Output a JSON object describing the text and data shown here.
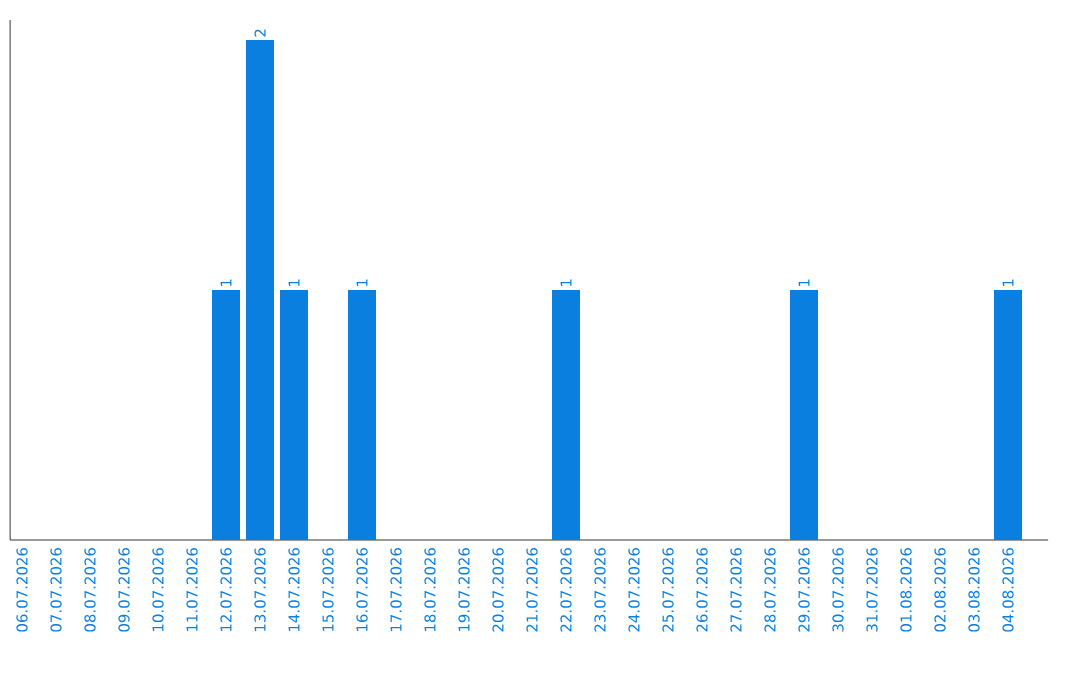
{
  "chart_data": {
    "type": "bar",
    "categories": [
      "06.07.2026",
      "07.07.2026",
      "08.07.2026",
      "09.07.2026",
      "10.07.2026",
      "11.07.2026",
      "12.07.2026",
      "13.07.2026",
      "14.07.2026",
      "15.07.2026",
      "16.07.2026",
      "17.07.2026",
      "18.07.2026",
      "19.07.2026",
      "20.07.2026",
      "21.07.2026",
      "22.07.2026",
      "23.07.2026",
      "24.07.2026",
      "25.07.2026",
      "26.07.2026",
      "27.07.2026",
      "28.07.2026",
      "29.07.2026",
      "30.07.2026",
      "31.07.2026",
      "01.08.2026",
      "02.08.2026",
      "03.08.2026",
      "04.08.2026"
    ],
    "values": [
      0,
      0,
      0,
      0,
      0,
      0,
      1,
      2,
      1,
      0,
      1,
      0,
      0,
      0,
      0,
      0,
      1,
      0,
      0,
      0,
      0,
      0,
      0,
      1,
      0,
      0,
      0,
      0,
      0,
      1
    ],
    "value_labels": [
      null,
      null,
      null,
      null,
      null,
      null,
      "1",
      "2",
      "1",
      null,
      "1",
      null,
      null,
      null,
      null,
      null,
      "1",
      null,
      null,
      null,
      null,
      null,
      null,
      "1",
      null,
      null,
      null,
      null,
      null,
      "1"
    ],
    "color": "#0a7fe0",
    "tick_labels": "x"
  }
}
